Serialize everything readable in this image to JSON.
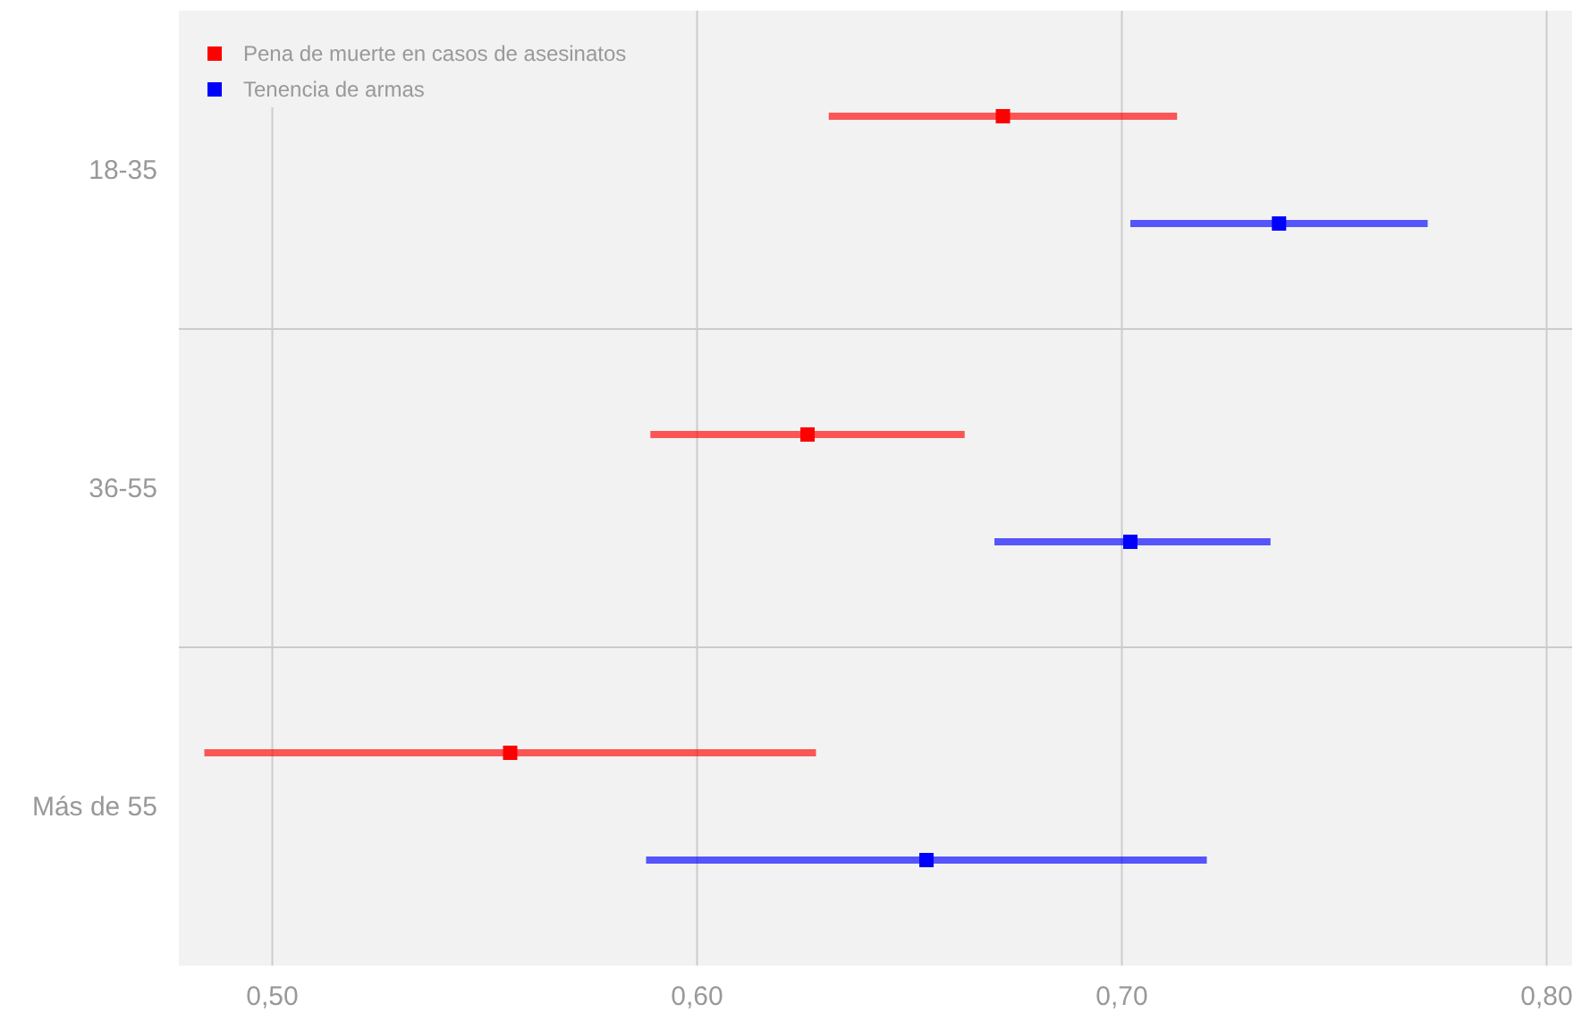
{
  "chart_data": {
    "type": "scatter",
    "orientation": "horizontal",
    "categories": [
      "18-35",
      "36-55",
      "Más de 55"
    ],
    "series": [
      {
        "name": "Pena de muerte en casos de asesinatos",
        "color": "#ff0000",
        "values": [
          0.672,
          0.626,
          0.556
        ],
        "errors": [
          [
            0.631,
            0.713
          ],
          [
            0.589,
            0.663
          ],
          [
            0.484,
            0.628
          ]
        ]
      },
      {
        "name": "Tenencia de armas",
        "color": "#0000ff",
        "values": [
          0.737,
          0.702,
          0.654
        ],
        "errors": [
          [
            0.702,
            0.772
          ],
          [
            0.67,
            0.735
          ],
          [
            0.588,
            0.72
          ]
        ]
      }
    ],
    "xlim": [
      0.478,
      0.806
    ],
    "xticks": [
      {
        "value": 0.5,
        "label": "0,50"
      },
      {
        "value": 0.6,
        "label": "0,60"
      },
      {
        "value": 0.7,
        "label": "0,70"
      },
      {
        "value": 0.8,
        "label": "0,80"
      }
    ],
    "grid": true,
    "legend": "top left",
    "marker": "square"
  }
}
